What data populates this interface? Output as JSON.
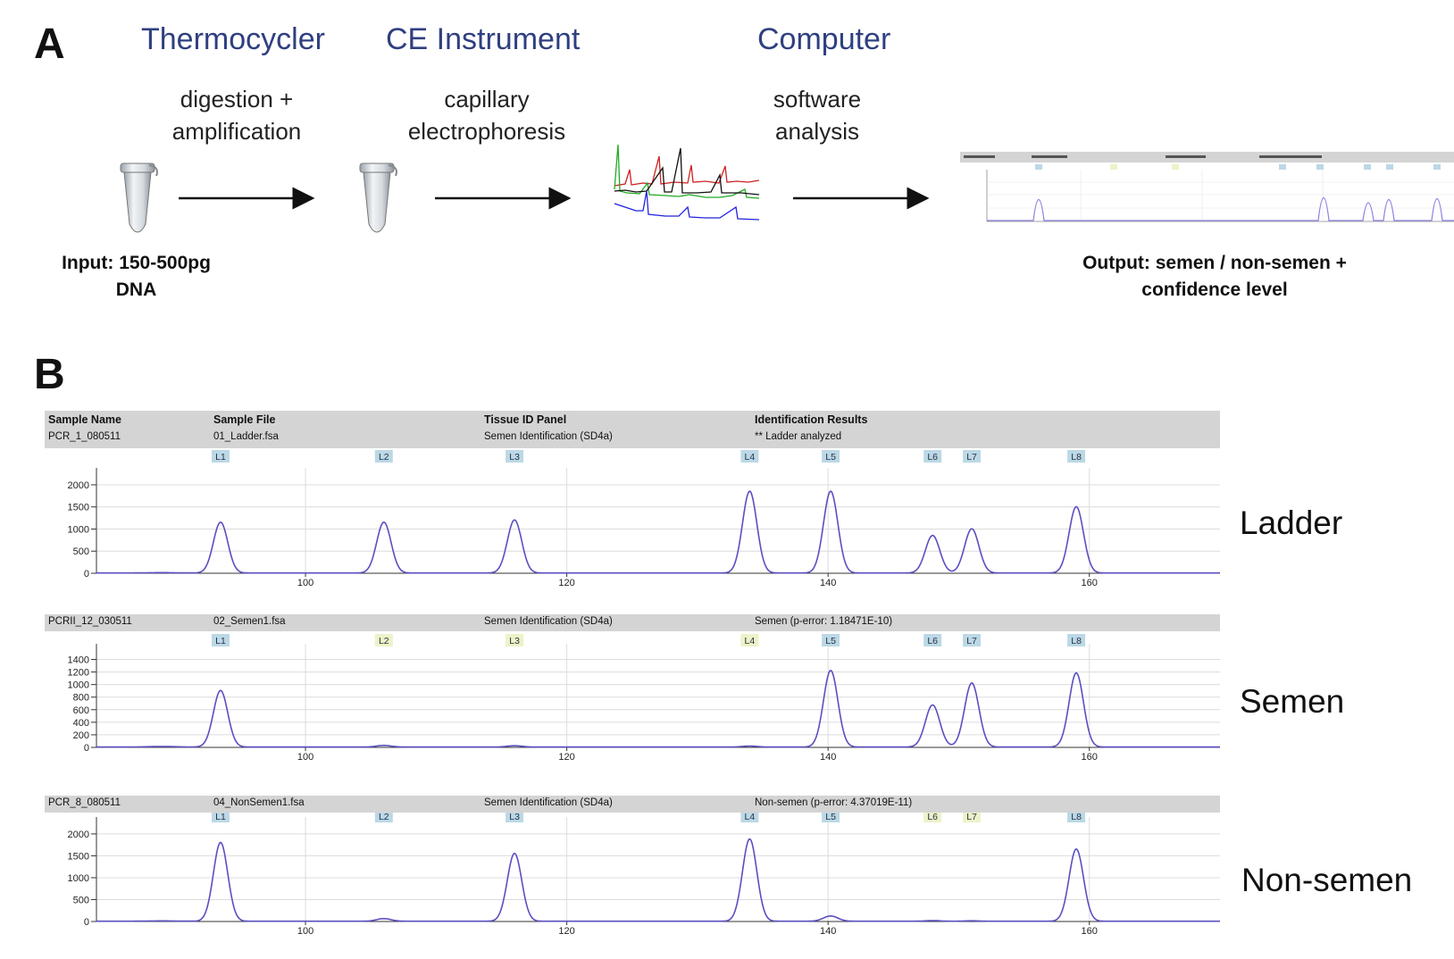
{
  "panel_a": {
    "letter": "A",
    "stages": [
      "Thermocycler",
      "CE Instrument",
      "Computer"
    ],
    "steps": [
      {
        "line1": "digestion +",
        "line2": "amplification"
      },
      {
        "line1": "capillary",
        "line2": "electrophoresis"
      },
      {
        "line1": "software",
        "line2": "analysis"
      }
    ],
    "input": {
      "line1": "Input: 150-500pg",
      "line2": "DNA"
    },
    "output": {
      "line1": "Output: semen / non-semen +",
      "line2": "confidence level"
    }
  },
  "panel_b": {
    "letter": "B",
    "headers": {
      "sample_name": "Sample Name",
      "sample_file": "Sample File",
      "tissue_panel": "Tissue ID Panel",
      "results": "Identification Results"
    },
    "x_ticks": [
      100,
      120,
      140,
      160
    ],
    "marker_labels": [
      "L1",
      "L2",
      "L3",
      "L4",
      "L5",
      "L6",
      "L7",
      "L8"
    ],
    "colors": {
      "trace": "#5a4fc0",
      "marker_detected": "#bcd8e6",
      "marker_absent": "#eef2c8",
      "header": "#d4d4d4"
    },
    "samples": [
      {
        "label": "Ladder",
        "sample_name": "PCR_1_080511",
        "sample_file": "01_Ladder.fsa",
        "panel": "Semen Identification (SD4a)",
        "result": "** Ladder analyzed",
        "detected": [
          true,
          true,
          true,
          true,
          true,
          true,
          true,
          true
        ],
        "y_ticks": [
          0,
          500,
          1000,
          1500,
          2000
        ]
      },
      {
        "label": "Semen",
        "sample_name": "PCRII_12_030511",
        "sample_file": "02_Semen1.fsa",
        "panel": "Semen Identification (SD4a)",
        "result": "Semen (p-error: 1.18471E-10)",
        "detected": [
          true,
          false,
          false,
          false,
          true,
          true,
          true,
          true
        ],
        "y_ticks": [
          0,
          200,
          400,
          600,
          800,
          1000,
          1200,
          1400
        ]
      },
      {
        "label": "Non-semen",
        "sample_name": "PCR_8_080511",
        "sample_file": "04_NonSemen1.fsa",
        "panel": "Semen Identification (SD4a)",
        "result": "Non-semen (p-error: 4.37019E-11)",
        "detected": [
          true,
          true,
          true,
          true,
          true,
          false,
          false,
          true
        ],
        "y_ticks": [
          0,
          500,
          1000,
          1500,
          2000
        ]
      }
    ]
  },
  "chart_data": [
    {
      "type": "line",
      "title": "Ladder",
      "x_range": [
        84,
        170
      ],
      "ylim": [
        0,
        2100
      ],
      "peaks": [
        {
          "marker": "L1",
          "x": 93.5,
          "y": 1150
        },
        {
          "marker": "L2",
          "x": 106,
          "y": 1150
        },
        {
          "marker": "L3",
          "x": 116,
          "y": 1200
        },
        {
          "marker": "L4",
          "x": 134,
          "y": 1850
        },
        {
          "marker": "L5",
          "x": 140.2,
          "y": 1850
        },
        {
          "marker": "L6",
          "x": 148,
          "y": 850
        },
        {
          "marker": "L7",
          "x": 151,
          "y": 1000
        },
        {
          "marker": "L8",
          "x": 159,
          "y": 1500
        }
      ]
    },
    {
      "type": "line",
      "title": "Semen",
      "x_range": [
        84,
        170
      ],
      "ylim": [
        0,
        1450
      ],
      "peaks": [
        {
          "marker": "L1",
          "x": 93.5,
          "y": 900
        },
        {
          "marker": "L2",
          "x": 106,
          "y": 25
        },
        {
          "marker": "L3",
          "x": 116,
          "y": 20
        },
        {
          "marker": "L4",
          "x": 134,
          "y": 15
        },
        {
          "marker": "L5",
          "x": 140.2,
          "y": 1220
        },
        {
          "marker": "L6",
          "x": 148,
          "y": 670
        },
        {
          "marker": "L7",
          "x": 151,
          "y": 1020
        },
        {
          "marker": "L8",
          "x": 159,
          "y": 1180
        }
      ]
    },
    {
      "type": "line",
      "title": "Non-semen",
      "x_range": [
        84,
        170
      ],
      "ylim": [
        0,
        2100
      ],
      "peaks": [
        {
          "marker": "L1",
          "x": 93.5,
          "y": 1800
        },
        {
          "marker": "L2",
          "x": 106,
          "y": 60
        },
        {
          "marker": "L3",
          "x": 116,
          "y": 1550
        },
        {
          "marker": "L4",
          "x": 134,
          "y": 1880
        },
        {
          "marker": "L5",
          "x": 140.2,
          "y": 120
        },
        {
          "marker": "L6",
          "x": 148,
          "y": 15
        },
        {
          "marker": "L7",
          "x": 151,
          "y": 10
        },
        {
          "marker": "L8",
          "x": 159,
          "y": 1650
        }
      ]
    }
  ]
}
